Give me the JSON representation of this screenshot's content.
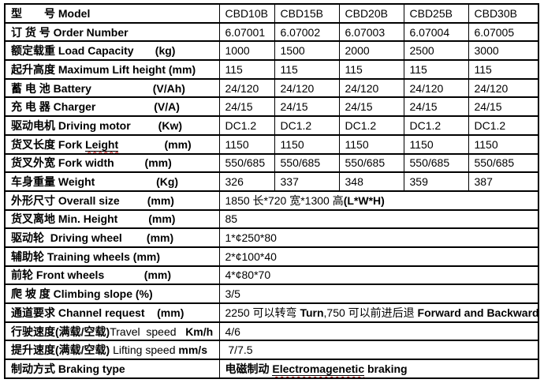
{
  "colors": {
    "border": "#000000",
    "text": "#000000",
    "squiggle_red": "#c00000"
  },
  "table": {
    "rows": [
      {
        "label": [
          [
            "型　　号 Model",
            "b"
          ]
        ],
        "values": [
          "CBD10B",
          "CBD15B",
          "CBD20B",
          "CBD25B",
          "CBD30B"
        ]
      },
      {
        "label": [
          [
            "订 货 号 Order Number",
            "b"
          ]
        ],
        "values": [
          "6.07001",
          "6.07002",
          "6.07003",
          "6.07004",
          "6.07005"
        ]
      },
      {
        "label": [
          [
            "额定载重 Load Capacity       (kg)",
            "b"
          ]
        ],
        "values": [
          "1000",
          "1500",
          "2000",
          "2500",
          "3000"
        ]
      },
      {
        "label": [
          [
            "起升高度 Maximum Lift height (mm)",
            "b"
          ]
        ],
        "values": [
          "115",
          "115",
          "115",
          "115",
          "115"
        ]
      },
      {
        "label": [
          [
            "蓄 电 池 Battery                    (V/Ah)",
            "b"
          ]
        ],
        "values": [
          "24/120",
          "24/120",
          "24/120",
          "24/120",
          "24/120"
        ]
      },
      {
        "label": [
          [
            "充 电 器 Charger                   (V/A)",
            "b"
          ]
        ],
        "values": [
          "24/15",
          "24/15",
          "24/15",
          "24/15",
          "24/15"
        ]
      },
      {
        "label": [
          [
            "驱动电机 Driving motor         (Kw)",
            "b"
          ]
        ],
        "values": [
          "DC1.2",
          "DC1.2",
          "DC1.2",
          "DC1.2",
          "DC1.2"
        ]
      },
      {
        "label": [
          [
            "货叉长度 Fork ",
            "b"
          ],
          [
            "Leight",
            "m"
          ],
          [
            "               (mm)",
            "b"
          ]
        ],
        "values": [
          "1150",
          "1150",
          "1150",
          "1150",
          "1150"
        ]
      },
      {
        "label": [
          [
            "货叉外宽 Fork width          (mm)",
            "b"
          ]
        ],
        "values": [
          "550/685",
          "550/685",
          "550/685",
          "550/685",
          "550/685"
        ]
      },
      {
        "label": [
          [
            "车身重量 Weight                    (Kg)",
            "b"
          ]
        ],
        "values": [
          "326",
          "337",
          "348",
          "359",
          "387"
        ]
      },
      {
        "label": [
          [
            "外形尺寸 Overall size         (mm)",
            "b"
          ]
        ],
        "span": [
          [
            "1850 长*720 宽*1300 高",
            "r"
          ],
          [
            "(L*W*H)",
            "b"
          ]
        ]
      },
      {
        "label": [
          [
            "货叉离地 Min. Height          (mm)",
            "b"
          ]
        ],
        "span": [
          [
            "85",
            "r"
          ]
        ]
      },
      {
        "label": [
          [
            "驱动轮  Driving wheel        (mm)",
            "b"
          ]
        ],
        "span": [
          [
            "1*¢250*80",
            "r"
          ]
        ]
      },
      {
        "label": [
          [
            "辅助轮 Training wheels (mm)",
            "b"
          ]
        ],
        "span": [
          [
            "2*¢100*40",
            "r"
          ]
        ]
      },
      {
        "label": [
          [
            "前轮 Front wheels             (mm)",
            "b"
          ]
        ],
        "span": [
          [
            "4*¢80*70",
            "r"
          ]
        ]
      },
      {
        "label": [
          [
            "爬 坡 度 Climbing slope (%)",
            "b"
          ]
        ],
        "span": [
          [
            "3/5",
            "r"
          ]
        ]
      },
      {
        "label": [
          [
            "通道要求 Channel request    (mm)",
            "b"
          ]
        ],
        "span": [
          [
            "2250 可以转弯 ",
            "r"
          ],
          [
            "Turn",
            "b"
          ],
          [
            ",750 可以前进后退 ",
            "r"
          ],
          [
            "Forward and Backward",
            "b"
          ]
        ]
      },
      {
        "label": [
          [
            "行驶速度(满载/空载)",
            "b"
          ],
          [
            "Travel  speed",
            "r"
          ],
          [
            "   Km/h",
            "b"
          ]
        ],
        "span": [
          [
            "4/6",
            "r"
          ]
        ]
      },
      {
        "label": [
          [
            "提升速度(满载/空载) ",
            "b"
          ],
          [
            "Lifting speed ",
            "r"
          ],
          [
            "mm/s",
            "b"
          ]
        ],
        "span": [
          [
            " 7/7.5",
            "r"
          ]
        ]
      },
      {
        "label": [
          [
            "制动方式 Braking type",
            "b"
          ]
        ],
        "span": [
          [
            "电磁制动 ",
            "b"
          ],
          [
            "Electromagenetic",
            "m"
          ],
          [
            " braking",
            "b"
          ]
        ]
      }
    ]
  }
}
